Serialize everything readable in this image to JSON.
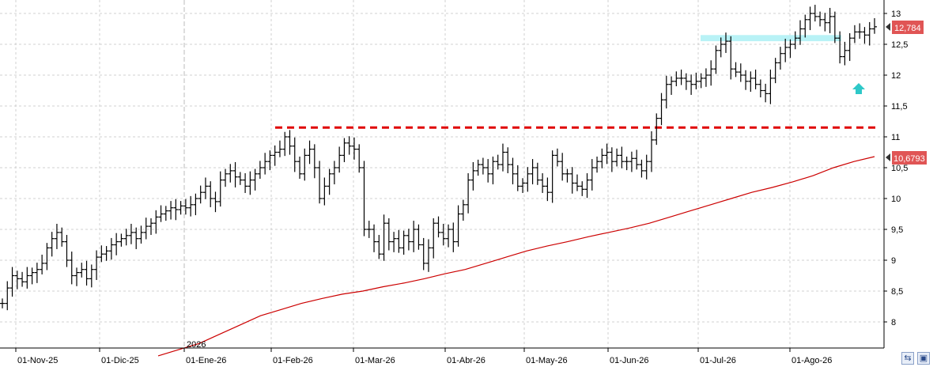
{
  "chart_data": {
    "type": "ohlc",
    "x_ticks": [
      "01-Nov-25",
      "01-Dic-25",
      "01-Ene-26",
      "01-Feb-26",
      "01-Mar-26",
      "01-Abr-26",
      "01-May-26",
      "01-Jun-26",
      "01-Jul-26",
      "01-Ago-26"
    ],
    "year_marker": "2026",
    "y_ticks": [
      "13",
      "12,5",
      "12",
      "11,5",
      "11",
      "10,5",
      "10",
      "9,5",
      "9",
      "8,5",
      "8"
    ],
    "ylim": [
      7.5,
      13.2
    ],
    "grid": true,
    "last_price_label": "12,784",
    "ma_label": "10,6793",
    "resistance_level": 11.15,
    "support_zone": [
      12.55,
      12.65
    ],
    "colors": {
      "bars": "#000000",
      "moving_average": "#cc0000",
      "resistance": "#e00000",
      "zone": "#b8f2f6",
      "price_tag": "#e05555",
      "arrow": "#2ec8c8"
    },
    "close_series": [
      8.3,
      8.55,
      8.75,
      8.7,
      8.65,
      8.75,
      8.8,
      8.85,
      8.95,
      9.2,
      9.35,
      9.45,
      9.3,
      9.0,
      8.75,
      8.8,
      8.85,
      8.7,
      8.85,
      9.05,
      9.1,
      9.15,
      9.25,
      9.3,
      9.35,
      9.4,
      9.45,
      9.35,
      9.45,
      9.55,
      9.6,
      9.7,
      9.75,
      9.8,
      9.85,
      9.82,
      9.88,
      9.85,
      9.9,
      10.0,
      10.1,
      10.2,
      10.0,
      9.95,
      10.3,
      10.4,
      10.45,
      10.35,
      10.3,
      10.2,
      10.3,
      10.4,
      10.5,
      10.6,
      10.7,
      10.75,
      10.8,
      11.0,
      10.85,
      10.6,
      10.4,
      10.7,
      10.8,
      10.5,
      10.0,
      10.2,
      10.4,
      10.5,
      10.7,
      10.9,
      10.85,
      10.8,
      10.5,
      9.5,
      9.5,
      9.3,
      9.1,
      9.6,
      9.3,
      9.35,
      9.2,
      9.4,
      9.3,
      9.5,
      9.25,
      8.95,
      9.2,
      9.6,
      9.45,
      9.35,
      9.5,
      9.3,
      9.75,
      9.9,
      10.3,
      10.45,
      10.55,
      10.5,
      10.4,
      10.6,
      10.55,
      10.75,
      10.55,
      10.4,
      10.2,
      10.25,
      10.4,
      10.5,
      10.3,
      10.2,
      10.1,
      10.7,
      10.6,
      10.4,
      10.4,
      10.25,
      10.2,
      10.15,
      10.3,
      10.5,
      10.6,
      10.7,
      10.75,
      10.6,
      10.7,
      10.6,
      10.6,
      10.65,
      10.55,
      10.45,
      10.6,
      10.95,
      11.3,
      11.6,
      11.85,
      11.9,
      11.95,
      11.95,
      11.9,
      11.85,
      11.9,
      11.95,
      12.0,
      12.1,
      12.4,
      12.5,
      12.55,
      12.1,
      12.05,
      12.0,
      11.9,
      11.95,
      11.85,
      11.75,
      11.7,
      11.95,
      12.2,
      12.35,
      12.45,
      12.5,
      12.6,
      12.75,
      12.9,
      13.0,
      12.95,
      12.9,
      12.85,
      12.95,
      12.6,
      12.3,
      12.4,
      12.6,
      12.7,
      12.7,
      12.65,
      12.75,
      12.784
    ],
    "ma_series": [
      7.45,
      7.55,
      7.65,
      7.8,
      7.95,
      8.1,
      8.2,
      8.3,
      8.38,
      8.45,
      8.5,
      8.57,
      8.63,
      8.7,
      8.78,
      8.85,
      8.95,
      9.05,
      9.15,
      9.23,
      9.3,
      9.38,
      9.45,
      9.52,
      9.6,
      9.7,
      9.8,
      9.9,
      10.0,
      10.1,
      10.18,
      10.27,
      10.37,
      10.5,
      10.6,
      10.6793
    ]
  },
  "ui": {
    "scroll_left_icon": "arrow-left-icon",
    "scroll_right_icon": "save-icon"
  }
}
